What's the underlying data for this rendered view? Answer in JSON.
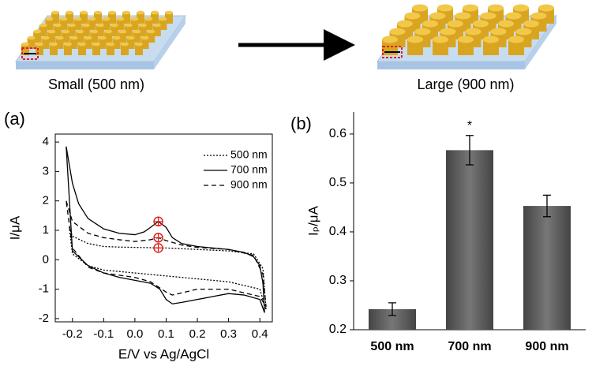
{
  "schematic": {
    "left_label": "Small (500 nm)",
    "right_label": "Large (900 nm)"
  },
  "chart_data": [
    {
      "type": "line",
      "panel": "(a)",
      "xlabel": "E/V vs Ag/AgCl",
      "ylabel": "I/μA",
      "xlim": [
        -0.255,
        0.44
      ],
      "xticks": [
        -0.2,
        -0.1,
        {
          "value": 0,
          "label": "0.0"
        },
        0.1,
        0.2,
        0.3,
        0.4
      ],
      "ylim": [
        -2.11,
        4.27
      ],
      "yticks": [
        -2,
        -1,
        0,
        1,
        2,
        3,
        4
      ],
      "frame": true,
      "series": [
        {
          "name": "500 nm",
          "color": "#000000",
          "line_style": "dotted",
          "x": [
            -0.21,
            -0.2,
            -0.15,
            -0.1,
            -0.05,
            0,
            0.05,
            0.075,
            0.1,
            0.2,
            0.3,
            0.38,
            0.41,
            0.42,
            0.4,
            0.3,
            0.2,
            0.1,
            0,
            -0.1,
            -0.15,
            -0.2,
            -0.21
          ],
          "values": [
            1.1,
            0.8,
            0.55,
            0.45,
            0.43,
            0.42,
            0.41,
            0.4,
            0.4,
            0.35,
            0.3,
            0.2,
            -0.3,
            -1.7,
            -1.0,
            -0.75,
            -0.65,
            -0.55,
            -0.45,
            -0.35,
            -0.2,
            0.2,
            1.1
          ]
        },
        {
          "name": "700 nm",
          "color": "#000000",
          "line_style": "solid",
          "x": [
            -0.22,
            -0.2,
            -0.18,
            -0.15,
            -0.1,
            -0.05,
            0,
            0.03,
            0.05,
            0.075,
            0.1,
            0.12,
            0.15,
            0.2,
            0.3,
            0.35,
            0.38,
            0.4,
            0.41,
            0.415,
            0.4,
            0.35,
            0.3,
            0.25,
            0.2,
            0.15,
            0.12,
            0.1,
            0.08,
            0.05,
            0,
            -0.05,
            -0.1,
            -0.15,
            -0.2,
            -0.22
          ],
          "values": [
            3.85,
            2.6,
            1.9,
            1.4,
            1.05,
            0.9,
            0.85,
            0.95,
            1.1,
            1.3,
            1.1,
            0.75,
            0.55,
            0.45,
            0.35,
            0.25,
            0.1,
            -0.2,
            -0.8,
            -1.8,
            -1.35,
            -1.2,
            -1.15,
            -1.25,
            -1.35,
            -1.45,
            -1.5,
            -1.35,
            -1.0,
            -0.8,
            -0.7,
            -0.6,
            -0.45,
            -0.2,
            0.3,
            3.85
          ]
        },
        {
          "name": "900 nm",
          "color": "#000000",
          "line_style": "dashed",
          "x": [
            -0.22,
            -0.2,
            -0.15,
            -0.1,
            -0.05,
            0,
            0.05,
            0.075,
            0.1,
            0.15,
            0.2,
            0.3,
            0.38,
            0.41,
            0.42,
            0.4,
            0.3,
            0.2,
            0.12,
            0.1,
            0.05,
            0,
            -0.1,
            -0.15,
            -0.2,
            -0.22
          ],
          "values": [
            2.0,
            1.3,
            0.9,
            0.75,
            0.68,
            0.62,
            0.68,
            0.75,
            0.65,
            0.5,
            0.42,
            0.35,
            0.15,
            -0.5,
            -1.6,
            -1.25,
            -1.0,
            -1.0,
            -1.2,
            -1.1,
            -0.75,
            -0.6,
            -0.45,
            -0.25,
            0.4,
            2.0
          ]
        }
      ],
      "peak_markers": {
        "color": "#e02020",
        "x": [
          0.075,
          0.075,
          0.075
        ],
        "y": [
          1.3,
          0.75,
          0.4
        ]
      }
    },
    {
      "type": "bar",
      "panel": "(b)",
      "ylabel": "Iₚ/μA",
      "categories": [
        "500 nm",
        "700 nm",
        "900 nm"
      ],
      "values": [
        0.242,
        0.567,
        0.453
      ],
      "errors": [
        0.013,
        0.03,
        0.022
      ],
      "color": "#5a5a5a",
      "ylim": [
        0.2,
        0.645
      ],
      "yticks": [
        0.2,
        0.3,
        0.4,
        0.5,
        0.6
      ],
      "frame": false,
      "annotations": [
        {
          "text": "*",
          "category": 1
        }
      ]
    }
  ]
}
